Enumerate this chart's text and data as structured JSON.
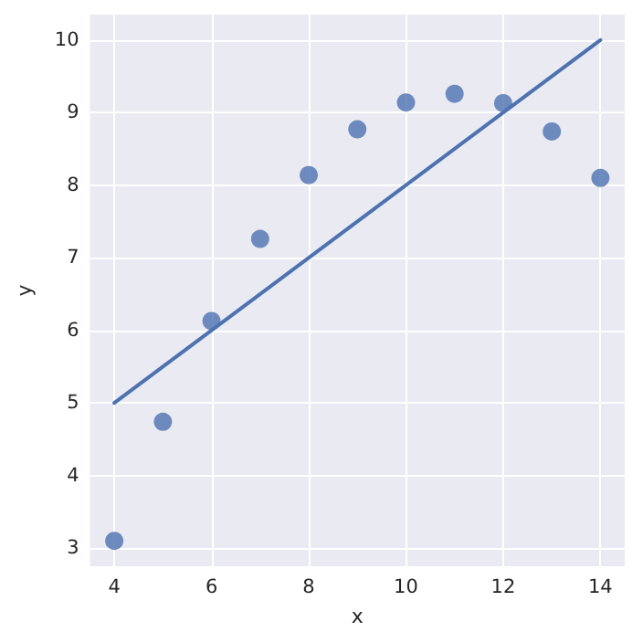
{
  "chart_data": {
    "type": "scatter",
    "xlabel": "x",
    "ylabel": "y",
    "series": [
      {
        "color": "#4c72b0",
        "x": [
          4,
          5,
          6,
          7,
          8,
          9,
          10,
          11,
          12,
          13,
          14
        ],
        "values": [
          3.1,
          4.74,
          6.13,
          7.26,
          8.14,
          8.77,
          9.14,
          9.26,
          9.13,
          8.74,
          8.1
        ],
        "marker": "circle"
      },
      {
        "type": "line",
        "color": "#4c72b0",
        "x": [
          4,
          14
        ],
        "values": [
          5,
          10
        ],
        "marker": "none",
        "line_style": "solid"
      }
    ],
    "xlim": [
      3.5,
      14.5
    ],
    "xticks": [
      4,
      6,
      8,
      10,
      12,
      14
    ],
    "ylim": [
      2.75,
      10.35
    ],
    "yticks": [
      3,
      4,
      5,
      6,
      7,
      8,
      9,
      10
    ],
    "grid": true
  }
}
